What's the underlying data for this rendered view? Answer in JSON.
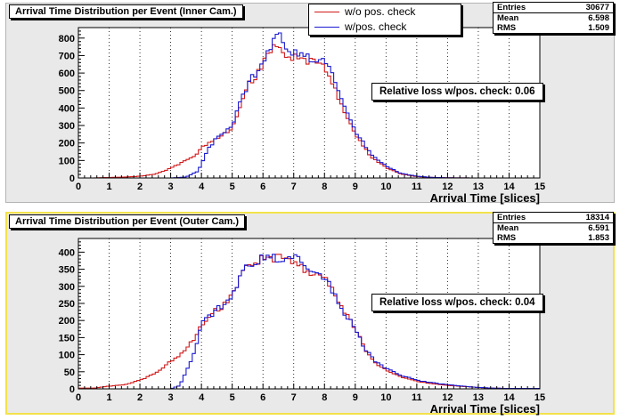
{
  "chart_data": [
    {
      "type": "histogram",
      "title": "Arrival Time Distribution per Event (Inner Cam.)",
      "xlabel": "Arrival Time [slices]",
      "xlim": [
        0,
        15
      ],
      "ylim": [
        0,
        860
      ],
      "xticks": [
        "0",
        "1",
        "2",
        "3",
        "4",
        "5",
        "6",
        "7",
        "8",
        "9",
        "10",
        "11",
        "12",
        "13",
        "14",
        "15"
      ],
      "yticks": [
        "0",
        "100",
        "200",
        "300",
        "400",
        "500",
        "600",
        "700",
        "800"
      ],
      "grid": "vertical dotted",
      "stats": {
        "entries_label": "Entries",
        "entries": "30677",
        "mean_label": "Mean",
        "mean": "6.598",
        "rms_label": "RMS",
        "rms": "1.509"
      },
      "annotation": "Relative loss w/pos. check: 0.06",
      "legend_position": "top-center",
      "series": [
        {
          "name": "w/o pos. check",
          "color": "#d11a1a",
          "points": [
            [
              0.5,
              0
            ],
            [
              1.0,
              3
            ],
            [
              1.5,
              5
            ],
            [
              2.0,
              10
            ],
            [
              2.5,
              22
            ],
            [
              3.0,
              55
            ],
            [
              3.5,
              100
            ],
            [
              3.8,
              130
            ],
            [
              4.0,
              170
            ],
            [
              4.3,
              210
            ],
            [
              4.6,
              240
            ],
            [
              5.0,
              280
            ],
            [
              5.2,
              390
            ],
            [
              5.5,
              520
            ],
            [
              6.0,
              650
            ],
            [
              6.3,
              740
            ],
            [
              6.6,
              720
            ],
            [
              7.0,
              690
            ],
            [
              7.5,
              670
            ],
            [
              8.0,
              650
            ],
            [
              8.3,
              530
            ],
            [
              8.6,
              400
            ],
            [
              9.0,
              250
            ],
            [
              9.5,
              120
            ],
            [
              10.0,
              60
            ],
            [
              10.5,
              22
            ],
            [
              11.0,
              8
            ],
            [
              11.5,
              3
            ],
            [
              12.0,
              1
            ],
            [
              13.0,
              0
            ],
            [
              14.0,
              0
            ]
          ]
        },
        {
          "name": "w/pos. check",
          "color": "#1a1ad1",
          "points": [
            [
              3.0,
              0
            ],
            [
              3.5,
              5
            ],
            [
              3.9,
              40
            ],
            [
              4.0,
              80
            ],
            [
              4.2,
              160
            ],
            [
              4.5,
              230
            ],
            [
              5.0,
              290
            ],
            [
              5.2,
              400
            ],
            [
              5.5,
              530
            ],
            [
              6.0,
              660
            ],
            [
              6.3,
              760
            ],
            [
              6.5,
              810
            ],
            [
              7.0,
              720
            ],
            [
              7.5,
              690
            ],
            [
              8.0,
              680
            ],
            [
              8.3,
              560
            ],
            [
              8.6,
              430
            ],
            [
              9.0,
              270
            ],
            [
              9.5,
              140
            ],
            [
              10.0,
              70
            ],
            [
              10.5,
              25
            ],
            [
              11.0,
              10
            ],
            [
              11.5,
              3
            ],
            [
              12.0,
              1
            ],
            [
              13.0,
              0
            ],
            [
              14.0,
              0
            ]
          ]
        }
      ]
    },
    {
      "type": "histogram",
      "title": "Arrival Time Distribution per Event (Outer Cam.)",
      "xlabel": "Arrival Time [slices]",
      "xlim": [
        0,
        15
      ],
      "ylim": [
        0,
        440
      ],
      "xticks": [
        "0",
        "1",
        "2",
        "3",
        "4",
        "5",
        "6",
        "7",
        "8",
        "9",
        "10",
        "11",
        "12",
        "13",
        "14",
        "15"
      ],
      "yticks": [
        "0",
        "50",
        "100",
        "150",
        "200",
        "250",
        "300",
        "350",
        "400"
      ],
      "grid": "vertical dotted",
      "stats": {
        "entries_label": "Entries",
        "entries": "18314",
        "mean_label": "Mean",
        "mean": "6.591",
        "rms_label": "RMS",
        "rms": "1.853"
      },
      "annotation": "Relative loss w/pos. check: 0.04",
      "series": [
        {
          "name": "w/o pos. check",
          "color": "#d11a1a",
          "points": [
            [
              0.5,
              2
            ],
            [
              1.0,
              8
            ],
            [
              1.5,
              12
            ],
            [
              2.0,
              25
            ],
            [
              2.5,
              45
            ],
            [
              3.0,
              80
            ],
            [
              3.3,
              100
            ],
            [
              3.5,
              120
            ],
            [
              3.8,
              150
            ],
            [
              4.0,
              190
            ],
            [
              4.5,
              230
            ],
            [
              5.0,
              270
            ],
            [
              5.3,
              330
            ],
            [
              5.6,
              370
            ],
            [
              6.0,
              380
            ],
            [
              6.5,
              385
            ],
            [
              7.0,
              380
            ],
            [
              7.5,
              340
            ],
            [
              8.0,
              330
            ],
            [
              8.3,
              280
            ],
            [
              8.6,
              230
            ],
            [
              9.0,
              180
            ],
            [
              9.3,
              120
            ],
            [
              9.6,
              80
            ],
            [
              10.0,
              55
            ],
            [
              10.5,
              35
            ],
            [
              11.0,
              22
            ],
            [
              11.5,
              15
            ],
            [
              12.0,
              10
            ],
            [
              12.5,
              7
            ],
            [
              13.0,
              4
            ],
            [
              13.5,
              2
            ],
            [
              14.0,
              1
            ]
          ]
        },
        {
          "name": "w/pos. check",
          "color": "#1a1ad1",
          "points": [
            [
              3.0,
              0
            ],
            [
              3.3,
              10
            ],
            [
              3.5,
              50
            ],
            [
              3.8,
              110
            ],
            [
              4.0,
              190
            ],
            [
              4.5,
              230
            ],
            [
              5.0,
              270
            ],
            [
              5.3,
              330
            ],
            [
              5.6,
              370
            ],
            [
              6.0,
              385
            ],
            [
              6.5,
              385
            ],
            [
              7.0,
              385
            ],
            [
              7.5,
              345
            ],
            [
              8.0,
              330
            ],
            [
              8.3,
              280
            ],
            [
              8.6,
              230
            ],
            [
              9.0,
              180
            ],
            [
              9.3,
              120
            ],
            [
              9.6,
              85
            ],
            [
              10.0,
              60
            ],
            [
              10.5,
              40
            ],
            [
              11.0,
              25
            ],
            [
              11.5,
              18
            ],
            [
              12.0,
              12
            ],
            [
              12.5,
              8
            ],
            [
              13.0,
              4
            ],
            [
              13.5,
              2
            ],
            [
              14.0,
              1
            ]
          ]
        }
      ]
    }
  ]
}
